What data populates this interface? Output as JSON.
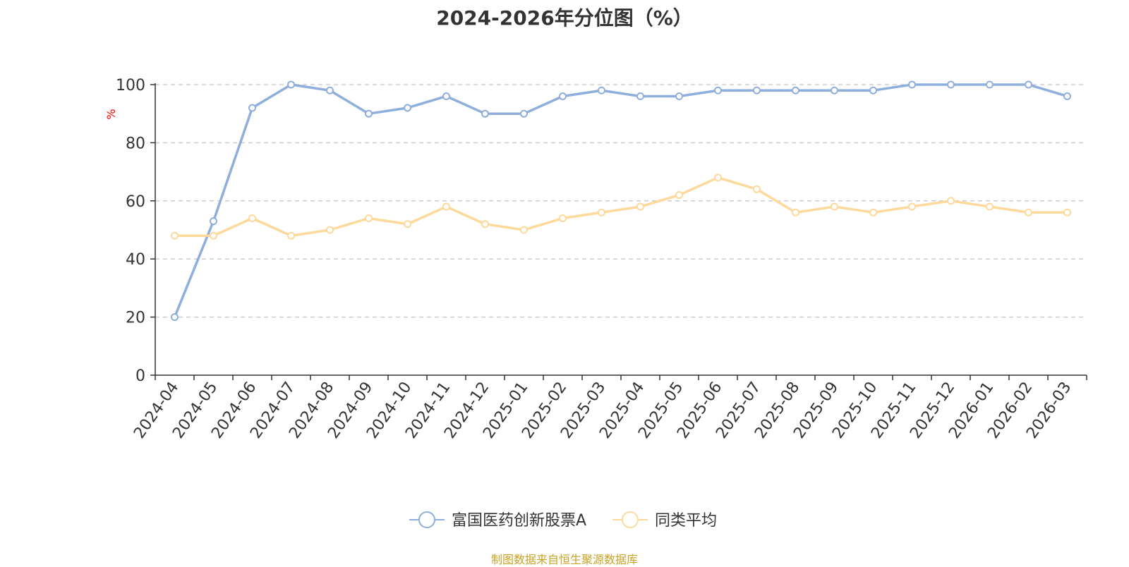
{
  "chart_data": {
    "type": "line",
    "title": "2024-2026年分位图（%）",
    "ylabel": "%",
    "xlabel": "",
    "ylim": [
      0,
      100
    ],
    "yticks": [
      0,
      20,
      40,
      60,
      80,
      100
    ],
    "grid": true,
    "legend_position": "bottom",
    "categories": [
      "2024-04",
      "2024-05",
      "2024-06",
      "2024-07",
      "2024-08",
      "2024-09",
      "2024-10",
      "2024-11",
      "2024-12",
      "2025-01",
      "2025-02",
      "2025-03",
      "2025-04",
      "2025-05",
      "2025-06",
      "2025-07",
      "2025-08",
      "2025-09",
      "2025-10",
      "2025-11",
      "2025-12",
      "2026-01",
      "2026-02",
      "2026-03"
    ],
    "series": [
      {
        "name": "富国医药创新股票A",
        "color": "#8eaedb",
        "values": [
          20,
          53,
          92,
          100,
          98,
          90,
          92,
          96,
          90,
          90,
          96,
          98,
          96,
          96,
          98,
          98,
          98,
          98,
          98,
          100,
          100,
          100,
          100,
          96
        ]
      },
      {
        "name": "同类平均",
        "color": "#fdd99b",
        "values": [
          48,
          48,
          54,
          48,
          50,
          54,
          52,
          58,
          52,
          50,
          54,
          56,
          58,
          62,
          68,
          64,
          56,
          58,
          56,
          58,
          60,
          58,
          56,
          56
        ]
      }
    ]
  },
  "source_text": "制图数据来自恒生聚源数据库",
  "colors": {
    "axis": "#333333",
    "grid": "#cccccc",
    "ylabel": "#ff0000",
    "source": "#c9a227"
  }
}
